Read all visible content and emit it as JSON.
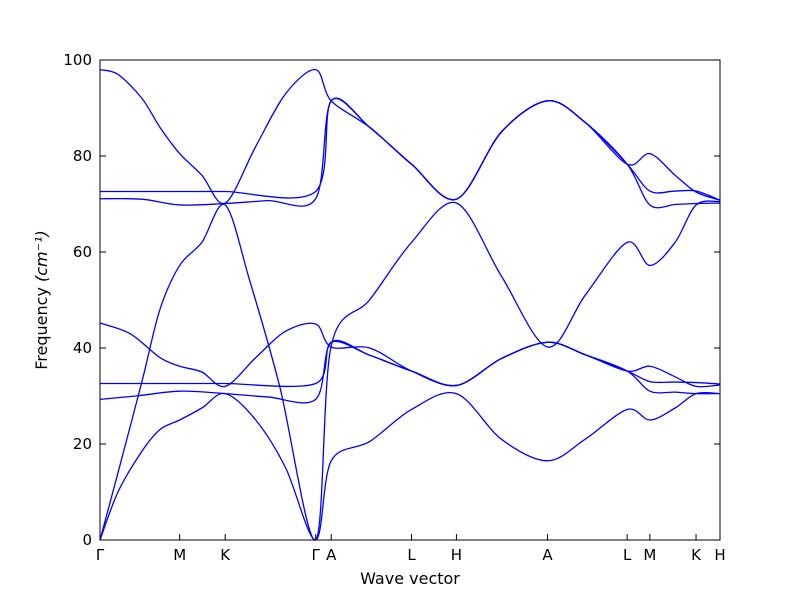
{
  "chart_data": {
    "type": "line",
    "xlabel": "Wave vector",
    "ylabel": "Frequency",
    "ylabel_unit": "(cm⁻¹)",
    "ylim": [
      0,
      100
    ],
    "yticks": [
      0,
      20,
      40,
      60,
      80,
      100
    ],
    "grid": false,
    "line_color": "#0000ff",
    "xlim": [
      0,
      10.35
    ],
    "high_symmetry_points": [
      {
        "label": "Γ",
        "x": 0
      },
      {
        "label": "M",
        "x": 1.33
      },
      {
        "label": "K",
        "x": 2.09
      },
      {
        "label": "Γ",
        "x": 3.6
      },
      {
        "label": "A",
        "x": 3.86
      },
      {
        "label": "L",
        "x": 5.2
      },
      {
        "label": "H",
        "x": 5.95
      },
      {
        "label": "A",
        "x": 7.47
      },
      {
        "label": "L",
        "x": 8.8
      },
      {
        "label": "M",
        "x": 9.18
      },
      {
        "label": "K",
        "x": 9.95
      },
      {
        "label": "H",
        "x": 10.35
      }
    ],
    "series": [
      {
        "values": [
          [
            0,
            0
          ],
          [
            0.3,
            10
          ],
          [
            0.7,
            18.5
          ],
          [
            1.0,
            23
          ],
          [
            1.33,
            25.0
          ],
          [
            1.7,
            27.5
          ],
          [
            2.09,
            30.5
          ],
          [
            2.6,
            25
          ],
          [
            3.1,
            15
          ],
          [
            3.6,
            0
          ],
          [
            3.86,
            16.5
          ],
          [
            4.5,
            20.5
          ],
          [
            5.2,
            27.2
          ],
          [
            5.95,
            30.5
          ],
          [
            6.7,
            21
          ],
          [
            7.47,
            16.5
          ],
          [
            8.1,
            21
          ],
          [
            8.8,
            27.2
          ],
          [
            9.18,
            25.0
          ],
          [
            9.6,
            27.5
          ],
          [
            9.95,
            30.5
          ],
          [
            10.35,
            30.5
          ]
        ]
      },
      {
        "values": [
          [
            0,
            0
          ],
          [
            0.3,
            14
          ],
          [
            0.7,
            33
          ],
          [
            1.0,
            48
          ],
          [
            1.33,
            57.2
          ],
          [
            1.7,
            62
          ],
          [
            2.09,
            69.8
          ],
          [
            2.5,
            54
          ],
          [
            3.0,
            32
          ],
          [
            3.6,
            0
          ],
          [
            3.86,
            40.5
          ],
          [
            4.5,
            50
          ],
          [
            5.2,
            62
          ],
          [
            5.95,
            70.2
          ],
          [
            6.7,
            55
          ],
          [
            7.47,
            40.2
          ],
          [
            8.1,
            51
          ],
          [
            8.8,
            62
          ],
          [
            9.18,
            57.2
          ],
          [
            9.6,
            62
          ],
          [
            9.95,
            69.8
          ],
          [
            10.35,
            70.5
          ]
        ]
      },
      {
        "values": [
          [
            0,
            29.3
          ],
          [
            0.6,
            30
          ],
          [
            1.33,
            31.0
          ],
          [
            2.09,
            30.5
          ],
          [
            2.8,
            29.8
          ],
          [
            3.6,
            29.3
          ],
          [
            3.86,
            41.2
          ],
          [
            4.5,
            38.5
          ],
          [
            5.2,
            35.2
          ],
          [
            5.95,
            32.2
          ],
          [
            6.7,
            37.8
          ],
          [
            7.47,
            41.2
          ],
          [
            8.1,
            38.6
          ],
          [
            8.8,
            35.2
          ],
          [
            9.18,
            33.0
          ],
          [
            9.6,
            32.9
          ],
          [
            9.95,
            32.8
          ],
          [
            10.35,
            32.5
          ]
        ]
      },
      {
        "values": [
          [
            0,
            32.6
          ],
          [
            1.33,
            32.6
          ],
          [
            2.09,
            32.6
          ],
          [
            3.6,
            32.6
          ],
          [
            3.86,
            41.2
          ],
          [
            4.5,
            38.5
          ],
          [
            5.2,
            35.2
          ],
          [
            5.95,
            32.2
          ],
          [
            6.7,
            37.8
          ],
          [
            7.47,
            41.2
          ],
          [
            8.1,
            38.6
          ],
          [
            8.8,
            35.2
          ],
          [
            9.18,
            36.2
          ],
          [
            9.6,
            34
          ],
          [
            9.95,
            32.0
          ],
          [
            10.35,
            32.3
          ]
        ]
      },
      {
        "values": [
          [
            0,
            45.2
          ],
          [
            0.5,
            43
          ],
          [
            1.0,
            38
          ],
          [
            1.33,
            36.2
          ],
          [
            1.7,
            35
          ],
          [
            2.09,
            32.0
          ],
          [
            2.6,
            38
          ],
          [
            3.1,
            43.5
          ],
          [
            3.6,
            45.0
          ],
          [
            3.86,
            40.2
          ],
          [
            4.5,
            40
          ],
          [
            5.2,
            35.2
          ],
          [
            5.95,
            32.2
          ],
          [
            6.7,
            37.8
          ],
          [
            7.47,
            41.2
          ],
          [
            8.1,
            38.6
          ],
          [
            8.8,
            35.2
          ],
          [
            9.18,
            31.0
          ],
          [
            9.6,
            30.8
          ],
          [
            9.95,
            30.5
          ],
          [
            10.35,
            30.5
          ]
        ]
      },
      {
        "values": [
          [
            0,
            71.1
          ],
          [
            0.7,
            71
          ],
          [
            1.33,
            69.8
          ],
          [
            2.09,
            70.1
          ],
          [
            2.8,
            70.7
          ],
          [
            3.6,
            71.1
          ],
          [
            3.86,
            91.5
          ],
          [
            4.5,
            86
          ],
          [
            5.2,
            78.3
          ],
          [
            5.95,
            71.0
          ],
          [
            6.7,
            85
          ],
          [
            7.47,
            91.5
          ],
          [
            8.1,
            87
          ],
          [
            8.8,
            78.3
          ],
          [
            9.18,
            72.7
          ],
          [
            9.6,
            72.7
          ],
          [
            9.95,
            72.7
          ],
          [
            10.35,
            70.8
          ]
        ]
      },
      {
        "values": [
          [
            0,
            72.6
          ],
          [
            1.33,
            72.6
          ],
          [
            2.09,
            72.6
          ],
          [
            3.6,
            72.6
          ],
          [
            3.86,
            91.5
          ],
          [
            4.5,
            86
          ],
          [
            5.2,
            78.3
          ],
          [
            5.95,
            71.0
          ],
          [
            6.7,
            85
          ],
          [
            7.47,
            91.5
          ],
          [
            8.1,
            87
          ],
          [
            8.8,
            78.3
          ],
          [
            9.18,
            69.8
          ],
          [
            9.6,
            69.9
          ],
          [
            9.95,
            70.1
          ],
          [
            10.35,
            70.2
          ]
        ]
      },
      {
        "values": [
          [
            0,
            98.0
          ],
          [
            0.3,
            97
          ],
          [
            0.7,
            92
          ],
          [
            1.0,
            86
          ],
          [
            1.33,
            80.5
          ],
          [
            1.7,
            76
          ],
          [
            2.09,
            70.2
          ],
          [
            2.6,
            82
          ],
          [
            3.1,
            93
          ],
          [
            3.6,
            98.0
          ],
          [
            3.86,
            91.5
          ],
          [
            4.5,
            86
          ],
          [
            5.2,
            78.3
          ],
          [
            5.95,
            71.0
          ],
          [
            6.7,
            85
          ],
          [
            7.47,
            91.5
          ],
          [
            8.1,
            87
          ],
          [
            8.8,
            78.3
          ],
          [
            9.18,
            80.5
          ],
          [
            9.6,
            76
          ],
          [
            9.95,
            72.5
          ],
          [
            10.35,
            70.8
          ]
        ]
      }
    ]
  }
}
